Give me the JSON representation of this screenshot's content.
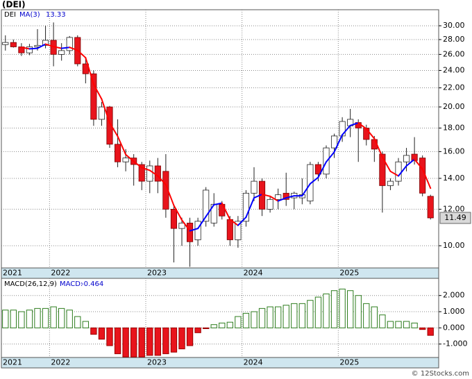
{
  "chart_data": [
    {
      "type": "candlestick",
      "title": "(DEI)",
      "symbol": "DEI",
      "footer": "© 12Stocks.com",
      "categories": [
        "2021",
        null,
        null,
        null,
        null,
        null,
        "2022",
        null,
        null,
        null,
        null,
        null,
        null,
        null,
        null,
        null,
        null,
        null,
        "2023",
        null,
        null,
        null,
        null,
        null,
        null,
        null,
        null,
        null,
        null,
        null,
        "2024",
        null,
        null,
        null,
        null,
        null,
        null,
        null,
        null,
        null,
        null,
        null,
        "2025",
        null,
        null,
        null,
        null,
        null,
        null,
        null,
        null,
        null,
        null,
        null
      ],
      "open": [
        27.3,
        27.6,
        27.0,
        26.2,
        27.0,
        27.2,
        27.9,
        26.0,
        26.5,
        28.3,
        24.8,
        23.6,
        18.8,
        20.0,
        16.6,
        15.2,
        15.5,
        15.0,
        13.8,
        14.9,
        14.5,
        12.0,
        10.9,
        11.2,
        10.3,
        11.3,
        11.2,
        12.3,
        11.4,
        10.3,
        11.3,
        13.0,
        13.8,
        12.0,
        12.6,
        13.0,
        12.7,
        12.7,
        12.5,
        15.0,
        14.3,
        16.3,
        17.3,
        18.2,
        18.5,
        18.0,
        17.0,
        15.8,
        13.5,
        13.8,
        15.2,
        15.8,
        15.5,
        12.8
      ],
      "high": [
        28.6,
        28.0,
        27.5,
        27.4,
        29.5,
        30.0,
        30.5,
        27.5,
        28.5,
        28.6,
        25.5,
        24.0,
        20.5,
        20.1,
        18.8,
        16.2,
        15.8,
        15.2,
        15.3,
        15.5,
        15.8,
        12.3,
        11.5,
        11.5,
        11.5,
        13.4,
        13.0,
        12.5,
        11.6,
        11.6,
        13.2,
        14.8,
        14.0,
        12.8,
        13.3,
        14.4,
        13.1,
        14.0,
        15.2,
        15.2,
        16.5,
        17.5,
        19.0,
        19.8,
        18.8,
        18.3,
        17.3,
        16.0,
        14.0,
        15.5,
        16.3,
        17.2,
        15.7,
        12.9
      ],
      "low": [
        26.5,
        26.9,
        25.8,
        25.9,
        26.5,
        26.8,
        24.5,
        25.2,
        26.0,
        24.5,
        22.5,
        18.2,
        18.2,
        16.3,
        14.8,
        14.5,
        13.5,
        13.2,
        13.0,
        13.0,
        11.5,
        9.2,
        10.0,
        9.0,
        10.0,
        11.0,
        11.0,
        11.4,
        10.0,
        9.9,
        11.0,
        12.5,
        11.6,
        11.8,
        12.0,
        12.2,
        12.0,
        12.3,
        12.3,
        13.8,
        14.0,
        15.5,
        16.8,
        17.2,
        15.2,
        16.5,
        15.2,
        11.8,
        13.2,
        13.5,
        14.5,
        15.0,
        12.8,
        11.4
      ],
      "close": [
        27.6,
        27.0,
        26.2,
        27.0,
        27.2,
        27.9,
        26.0,
        26.5,
        28.3,
        24.8,
        23.6,
        18.8,
        20.0,
        16.6,
        15.2,
        15.5,
        15.0,
        13.8,
        14.9,
        13.8,
        12.0,
        10.9,
        11.2,
        10.2,
        11.3,
        13.2,
        12.3,
        11.6,
        10.3,
        11.3,
        13.0,
        13.8,
        12.0,
        12.6,
        12.9,
        12.6,
        13.0,
        12.9,
        15.0,
        14.3,
        16.3,
        17.3,
        18.6,
        18.8,
        18.0,
        17.0,
        16.2,
        13.5,
        13.8,
        15.2,
        15.7,
        15.3,
        13.0,
        11.49
      ],
      "up_color": "#ffffff",
      "down_color": "#e8141c",
      "ma": {
        "name": "MA(3)",
        "up_color": "#0000ff",
        "down_color": "#ff0000",
        "values": [
          null,
          null,
          26.93,
          26.73,
          26.8,
          27.37,
          27.03,
          26.8,
          26.93,
          26.53,
          25.57,
          22.4,
          20.8,
          18.47,
          17.27,
          15.77,
          15.23,
          14.77,
          14.57,
          14.17,
          13.57,
          12.23,
          11.37,
          10.77,
          10.9,
          11.57,
          12.27,
          12.37,
          11.4,
          11.07,
          11.53,
          12.7,
          12.93,
          12.8,
          12.5,
          12.7,
          12.83,
          12.83,
          13.63,
          14.07,
          15.2,
          15.97,
          17.4,
          18.23,
          18.47,
          17.93,
          17.07,
          15.57,
          14.5,
          14.17,
          14.9,
          15.4,
          14.67,
          13.33
        ]
      },
      "ylim": [
        8.95,
        32.5
      ],
      "log_scale": true,
      "grid": true,
      "yticks": [
        {
          "value": 10,
          "label": "10.00"
        },
        {
          "value": 12,
          "label": "12.00"
        },
        {
          "value": 14,
          "label": "14.00"
        },
        {
          "value": 16,
          "label": "16.00"
        },
        {
          "value": 18,
          "label": "18.00"
        },
        {
          "value": 20,
          "label": "20.00"
        },
        {
          "value": 22,
          "label": "22.00"
        },
        {
          "value": 24,
          "label": "24.00"
        },
        {
          "value": 26,
          "label": "26.00"
        },
        {
          "value": 28,
          "label": "28.00"
        },
        {
          "value": 30,
          "label": "30.00"
        }
      ]
    },
    {
      "type": "bar",
      "name": "MACD(26,12,9)",
      "value_name": "MACD:",
      "categories": [
        "2021",
        null,
        null,
        null,
        null,
        null,
        "2022",
        null,
        null,
        null,
        null,
        null,
        null,
        null,
        null,
        null,
        null,
        null,
        "2023",
        null,
        null,
        null,
        null,
        null,
        null,
        null,
        null,
        null,
        null,
        null,
        "2024",
        null,
        null,
        null,
        null,
        null,
        null,
        null,
        null,
        null,
        null,
        null,
        "2025",
        null,
        null,
        null,
        null,
        null,
        null,
        null,
        null,
        null,
        null,
        null
      ],
      "values": [
        1.1,
        1.1,
        1.0,
        1.1,
        1.2,
        1.2,
        1.3,
        1.2,
        1.1,
        0.7,
        0.4,
        -0.4,
        -0.7,
        -1.1,
        -1.6,
        -1.8,
        -1.8,
        -1.8,
        -1.7,
        -1.7,
        -1.6,
        -1.5,
        -1.3,
        -1.1,
        -0.3,
        -0.05,
        0.2,
        0.3,
        0.35,
        0.7,
        0.9,
        1.0,
        1.2,
        1.3,
        1.3,
        1.4,
        1.5,
        1.5,
        1.7,
        1.9,
        2.1,
        2.3,
        2.4,
        2.3,
        2.0,
        1.5,
        1.3,
        0.8,
        0.4,
        0.4,
        0.4,
        0.3,
        -0.1,
        -0.464
      ],
      "up_color": "#2e7d1e",
      "down_color": "#e8141c",
      "ylim": [
        -1.83,
        3.06
      ],
      "grid": true,
      "yticks": [
        {
          "value": -1,
          "label": "-1.000"
        },
        {
          "value": 0,
          "label": "0.000"
        },
        {
          "value": 1,
          "label": "1.000"
        },
        {
          "value": 2,
          "label": "2.000"
        }
      ]
    }
  ]
}
